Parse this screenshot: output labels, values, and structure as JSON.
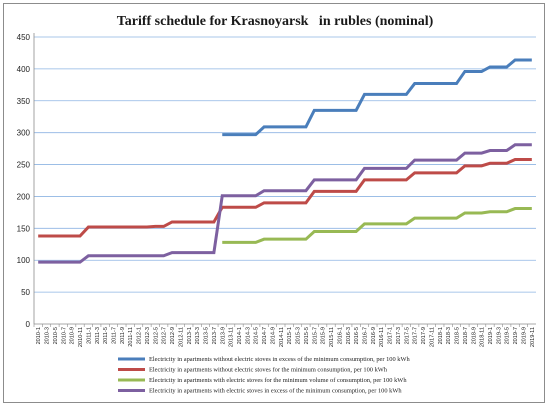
{
  "chart_data": {
    "type": "line",
    "title": "Tariff schedule for Krasnoyarsk   in rubles (nominal)",
    "xlabel": "",
    "ylabel": "",
    "ylim": [
      0,
      450
    ],
    "yticks": [
      0,
      50,
      100,
      150,
      200,
      250,
      300,
      350,
      400,
      450
    ],
    "grid": "horizontal",
    "legend": "bottom",
    "categories": [
      "2010-1",
      "2010-3",
      "2010-5",
      "2010-7",
      "2010-9",
      "2010-11",
      "2011-1",
      "2011-3",
      "2011-5",
      "2011-7",
      "2011-9",
      "2011-11",
      "2012-1",
      "2012-3",
      "2012-5",
      "2012-7",
      "2012-9",
      "2012-11",
      "2013-1",
      "2013-3",
      "2013-5",
      "2013-7",
      "2013-9",
      "2013-11",
      "2014-1",
      "2014-3",
      "2014-5",
      "2014-7",
      "2014-9",
      "2014-11",
      "2015-1",
      "2015-3",
      "2015-5",
      "2015-7",
      "2015-9",
      "2015-11",
      "2016-1",
      "2016-3",
      "2016-5",
      "2016-7",
      "2016-9",
      "2016-11",
      "2017-1",
      "2017-3",
      "2017-5",
      "2017-7",
      "2017-9",
      "2017-11",
      "2018-1",
      "2018-3",
      "2018-5",
      "2018-7",
      "2018-9",
      "2018-11",
      "2019-1",
      "2019-3",
      "2019-5",
      "2019-7",
      "2019-9",
      "2019-11"
    ],
    "series": [
      {
        "name": "Electricity in apartments without electric stoves in excess of the minimum consumption, per 100 kWh",
        "color": "#4a7ebb",
        "values": [
          null,
          null,
          null,
          null,
          null,
          null,
          null,
          null,
          null,
          null,
          null,
          null,
          null,
          null,
          null,
          null,
          null,
          null,
          null,
          null,
          null,
          null,
          297,
          297,
          297,
          297,
          297,
          309,
          309,
          309,
          309,
          309,
          309,
          335,
          335,
          335,
          335,
          335,
          335,
          360,
          360,
          360,
          360,
          360,
          360,
          377,
          377,
          377,
          377,
          377,
          377,
          396,
          396,
          396,
          403,
          403,
          403,
          414,
          414,
          414
        ]
      },
      {
        "name": "Electricity in apartments without electric stoves for the minimum consumption, per 100 kWh",
        "color": "#be4b48",
        "values": [
          138,
          138,
          138,
          138,
          138,
          138,
          152,
          152,
          152,
          152,
          152,
          152,
          152,
          152,
          153,
          153,
          160,
          160,
          160,
          160,
          160,
          160,
          183,
          183,
          183,
          183,
          183,
          190,
          190,
          190,
          190,
          190,
          190,
          208,
          208,
          208,
          208,
          208,
          208,
          226,
          226,
          226,
          226,
          226,
          226,
          237,
          237,
          237,
          237,
          237,
          237,
          248,
          248,
          248,
          252,
          252,
          252,
          258,
          258,
          258
        ]
      },
      {
        "name": "Electricity in apartments with electric stoves for the minimum volume of consumption, per 100 kWh",
        "color": "#98b954",
        "values": [
          null,
          null,
          null,
          null,
          null,
          null,
          null,
          null,
          null,
          null,
          null,
          null,
          null,
          null,
          null,
          null,
          null,
          null,
          null,
          null,
          null,
          null,
          128,
          128,
          128,
          128,
          128,
          133,
          133,
          133,
          133,
          133,
          133,
          145,
          145,
          145,
          145,
          145,
          145,
          157,
          157,
          157,
          157,
          157,
          157,
          166,
          166,
          166,
          166,
          166,
          166,
          174,
          174,
          174,
          176,
          176,
          176,
          181,
          181,
          181
        ]
      },
      {
        "name": "Electricity in apartments with electric stoves in excess of the minimum consumption, per 100 kWh",
        "color": "#7d60a0",
        "values": [
          97,
          97,
          97,
          97,
          97,
          97,
          107,
          107,
          107,
          107,
          107,
          107,
          107,
          107,
          107,
          107,
          112,
          112,
          112,
          112,
          112,
          112,
          201,
          201,
          201,
          201,
          201,
          209,
          209,
          209,
          209,
          209,
          209,
          226,
          226,
          226,
          226,
          226,
          226,
          244,
          244,
          244,
          244,
          244,
          244,
          257,
          257,
          257,
          257,
          257,
          257,
          268,
          268,
          268,
          272,
          272,
          272,
          281,
          281,
          281
        ]
      }
    ]
  }
}
